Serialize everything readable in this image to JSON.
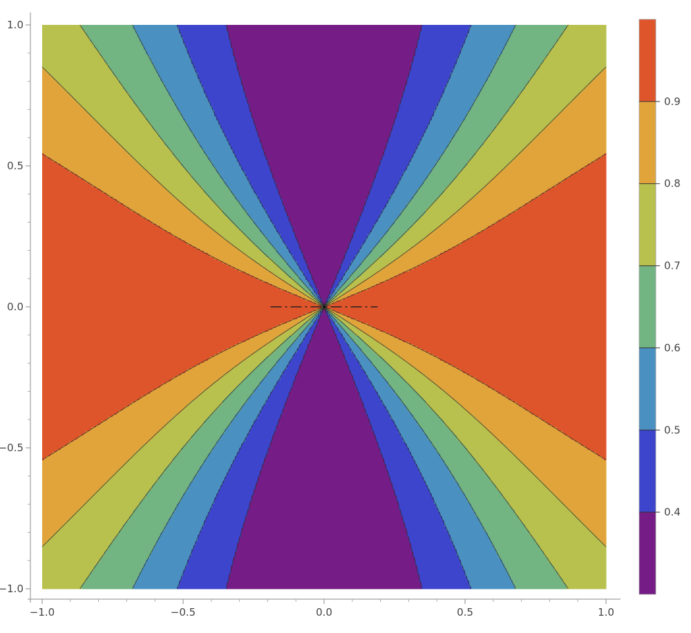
{
  "chart_data": {
    "type": "contour",
    "function": "1 / (1 + (x^2 / y^2)^(-1/2)) style field: value = 1 for y=0 axis, decreasing toward y axis",
    "xlim": [
      -1.0,
      1.0
    ],
    "ylim": [
      -1.0,
      1.0
    ],
    "x_ticks": [
      "-1.0",
      "-0.5",
      "0.0",
      "0.5",
      "1.0"
    ],
    "x_tick_values": [
      -1.0,
      -0.5,
      0.0,
      0.5,
      1.0
    ],
    "y_ticks": [
      "-1.0",
      "-0.5",
      "0.0",
      "0.5",
      "1.0"
    ],
    "y_tick_values": [
      -1.0,
      -0.5,
      0.0,
      0.5,
      1.0
    ],
    "contour_levels": [
      0.4,
      0.5,
      0.6,
      0.7,
      0.8,
      0.9
    ],
    "level_range": [
      0.3,
      1.0
    ],
    "band_colors": [
      "#761c86",
      "#3c45cc",
      "#4a91c1",
      "#72b482",
      "#b8c04e",
      "#e0a43b",
      "#df552b"
    ],
    "colorbar_ticks": [
      "0.4",
      "0.5",
      "0.6",
      "0.7",
      "0.8",
      "0.9"
    ],
    "colorbar_tick_values": [
      0.4,
      0.5,
      0.6,
      0.7,
      0.8,
      0.9
    ],
    "annotation_line": {
      "style": "dash-dot",
      "x_range": [
        -0.19,
        0.19
      ],
      "y": 0.0
    },
    "grid": false,
    "legend": "colorbar right"
  }
}
